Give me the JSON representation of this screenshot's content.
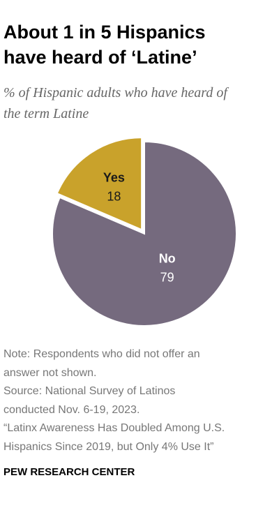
{
  "chart_data": {
    "type": "pie",
    "title": "About 1 in 5 Hispanics have heard of ‘Latine’",
    "subtitle": "% of Hispanic adults who have heard of the term Latine",
    "categories": [
      "No",
      "Yes"
    ],
    "values": [
      79,
      18
    ],
    "colors": [
      "#756a7e",
      "#c9a22b"
    ],
    "label_colors": [
      "#ffffff",
      "#1a1a1a"
    ],
    "notes": [
      "Note: Respondents who did not offer an",
      "answer not shown.",
      "Source: National Survey of Latinos",
      "conducted Nov. 6-19, 2023.",
      "“Latinx Awareness Has Doubled Among U.S.",
      "Hispanics Since 2019, but Only 4% Use It”"
    ],
    "source": "PEW RESEARCH CENTER"
  }
}
